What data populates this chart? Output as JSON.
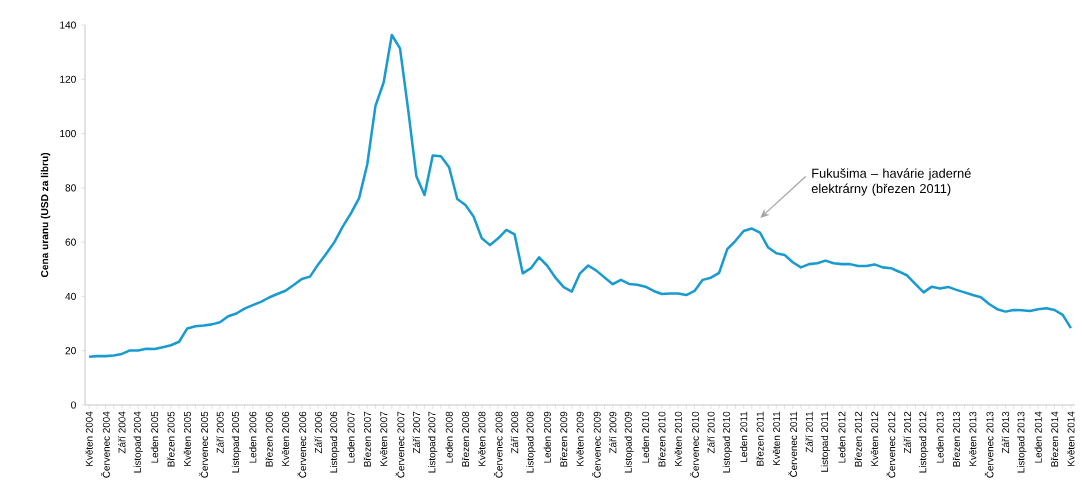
{
  "chart_data": {
    "type": "line",
    "ylabel": "Cena uranu (USD za libru)",
    "categories": [
      "Květen 2004",
      null,
      "Červenec 2004",
      null,
      "Září 2004",
      null,
      "Listopad 2004",
      null,
      "Leden 2005",
      null,
      "Březen 2005",
      null,
      "Květen 2005",
      null,
      "Červenec 2005",
      null,
      "Září 2005",
      null,
      "Listopad 2005",
      null,
      "Leden 2006",
      null,
      "Březen 2006",
      null,
      "Květen 2006",
      null,
      "Červenec 2006",
      null,
      "Září 2006",
      null,
      "Listopad 2006",
      null,
      "Leden 2007",
      null,
      "Březen 2007",
      null,
      "Květen 2007",
      null,
      "Červenec 2007",
      null,
      "Září 2007",
      null,
      "Listopad 2007",
      null,
      "Leden 2008",
      null,
      "Březen 2008",
      null,
      "Květen 2008",
      null,
      "Červenec 2008",
      null,
      "Září 2008",
      null,
      "Listopad 2008",
      null,
      "Leden 2009",
      null,
      "Březen 2009",
      null,
      "Květen 2009",
      null,
      "Červenec 2009",
      null,
      "Září 2009",
      null,
      "Listopad 2009",
      null,
      "Leden 2010",
      null,
      "Březen 2010",
      null,
      "Květen 2010",
      null,
      "Červenec 2010",
      null,
      "Září 2010",
      null,
      "Listopad 2010",
      null,
      "Leden 2011",
      null,
      "Březen 2011",
      null,
      "Květen 2011",
      null,
      "Červenec 2011",
      null,
      "Září 2011",
      null,
      "Listopad 2011",
      null,
      "Leden 2012",
      null,
      "Březen 2012",
      null,
      "Květen 2012",
      null,
      "Červenec 2012",
      null,
      "Září 2012",
      null,
      "Listopad 2012",
      null,
      "Leden 2013",
      null,
      "Březen 2013",
      null,
      "Květen 2013",
      null,
      "Červenec 2013",
      null,
      "Září 2013",
      null,
      "Listopad 2013",
      null,
      "Leden 2014",
      null,
      "Březen 2014",
      null,
      "Květen 2014"
    ],
    "series": [
      {
        "color": "#1a9bd0",
        "values": [
          17.8,
          18,
          18,
          18.2,
          18.8,
          20.1,
          20.1,
          20.7,
          20.6,
          21.3,
          22,
          23.3,
          28.2,
          29,
          29.3,
          29.7,
          30.5,
          32.7,
          33.7,
          35.5,
          36.8,
          38,
          39.6,
          40.9,
          42.1,
          44.2,
          46.4,
          47.3,
          51.8,
          55.8,
          60.1,
          65.7,
          70.6,
          76.2,
          88.7,
          110.2,
          118.8,
          136.3,
          131.4,
          108.7,
          84.3,
          77.4,
          91.9,
          91.6,
          87.6,
          75.9,
          73.7,
          69.4,
          61.4,
          58.9,
          61.4,
          64.5,
          62.9,
          48.5,
          50.4,
          54.4,
          51.3,
          46.9,
          43.4,
          41.8,
          48.5,
          51.4,
          49.5,
          47,
          44.5,
          46.1,
          44.6,
          44.3,
          43.6,
          42,
          40.9,
          41.1,
          41.1,
          40.5,
          42,
          46.1,
          46.9,
          48.7,
          57.4,
          60.5,
          64.1,
          65,
          63.5,
          58,
          55.9,
          55.3,
          52.6,
          50.7,
          51.9,
          52.2,
          53.2,
          52.2,
          51.9,
          51.9,
          51.2,
          51.2,
          51.8,
          50.7,
          50.4,
          49.1,
          47.7,
          44.5,
          41.5,
          43.6,
          42.9,
          43.5,
          42.4,
          41.5,
          40.5,
          39.7,
          37.2,
          35.3,
          34.4,
          35,
          34.9,
          34.6,
          35.3,
          35.6,
          35,
          33.2,
          28.3
        ]
      }
    ],
    "ylim": [
      0,
      140
    ],
    "yticks": [
      0,
      20,
      40,
      60,
      80,
      100,
      120,
      140
    ],
    "annotations": [
      "Fukušima – havárie jaderné elektrárny (březen 2011)"
    ]
  }
}
